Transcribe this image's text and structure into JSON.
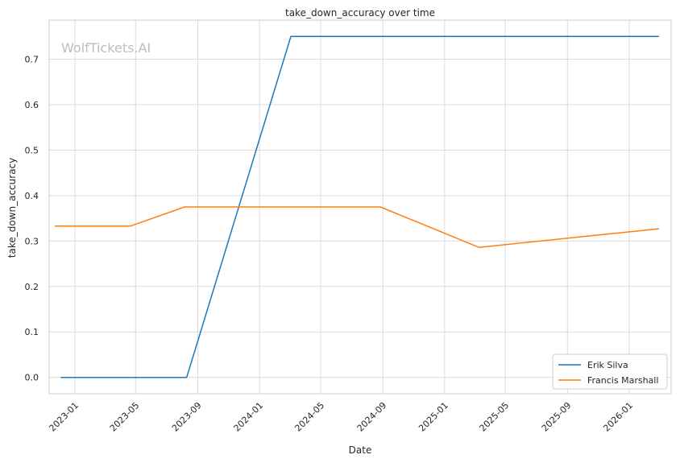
{
  "chart_data": {
    "type": "line",
    "title": "take_down_accuracy over time",
    "xlabel": "Date",
    "ylabel": "take_down_accuracy",
    "watermark": "WolfTickets.AI",
    "x_ticks": [
      "2023-01",
      "2023-05",
      "2023-09",
      "2024-01",
      "2024-05",
      "2024-09",
      "2025-01",
      "2025-05",
      "2025-09",
      "2026-01"
    ],
    "y_ticks": [
      "0.0",
      "0.1",
      "0.2",
      "0.3",
      "0.4",
      "0.5",
      "0.6",
      "0.7"
    ],
    "xlim": [
      "2022-11-11",
      "2026-03-25"
    ],
    "ylim": [
      -0.036,
      0.786
    ],
    "grid": true,
    "legend_position": "lower-right",
    "series": [
      {
        "name": "Erik Silva",
        "color": "#1f77b4",
        "points": [
          {
            "x": "2022-12-04",
            "y": 0.0
          },
          {
            "x": "2023-08-10",
            "y": 0.0
          },
          {
            "x": "2024-03-03",
            "y": 0.75
          },
          {
            "x": "2026-03-01",
            "y": 0.75
          }
        ]
      },
      {
        "name": "Francis Marshall",
        "color": "#ff7f0e",
        "points": [
          {
            "x": "2022-11-22",
            "y": 0.333
          },
          {
            "x": "2023-04-21",
            "y": 0.333
          },
          {
            "x": "2023-08-06",
            "y": 0.375
          },
          {
            "x": "2024-08-27",
            "y": 0.375
          },
          {
            "x": "2025-03-10",
            "y": 0.286
          },
          {
            "x": "2026-03-01",
            "y": 0.327
          }
        ]
      }
    ]
  }
}
